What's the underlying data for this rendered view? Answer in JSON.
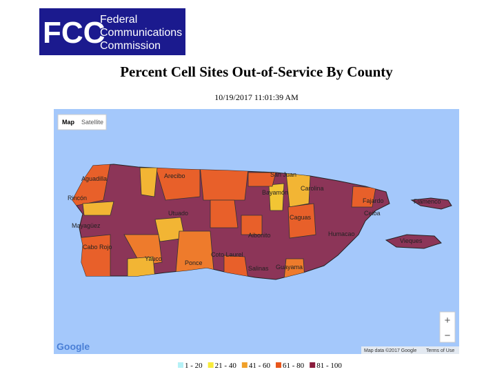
{
  "header": {
    "logo_mark": "FCC",
    "logo_lines": [
      "Federal",
      "Communications",
      "Commission"
    ]
  },
  "title": "Percent Cell Sites Out-of-Service By County",
  "timestamp": "10/19/2017 11:01:39 AM",
  "map": {
    "buttons": [
      "Map",
      "Satellite"
    ],
    "zoom": [
      "+",
      "−"
    ],
    "places": [
      "Aguadilla",
      "Arecibo",
      "San Juan",
      "Bayamón",
      "Carolina",
      "Rincón",
      "Mayagüez",
      "Utuado",
      "Cabo Rojo",
      "Ponce",
      "Coto Laurel",
      "Aibonito",
      "Caguas",
      "Humacao",
      "Fajardo",
      "Ceiba",
      "Guayama",
      "Salinas",
      "Vieques",
      "Flamenco",
      "Yauco"
    ],
    "brand": "Google",
    "attribution": "Map data ©2017 Google",
    "terms": "Terms of Use"
  },
  "legend": [
    {
      "label": "1 - 20",
      "color": "#b5f1f6"
    },
    {
      "label": "21 - 40",
      "color": "#f7ea3a"
    },
    {
      "label": "41 - 60",
      "color": "#f0a02a"
    },
    {
      "label": "61 - 80",
      "color": "#e8561c"
    },
    {
      "label": "81 - 100",
      "color": "#8a1c3c"
    }
  ]
}
